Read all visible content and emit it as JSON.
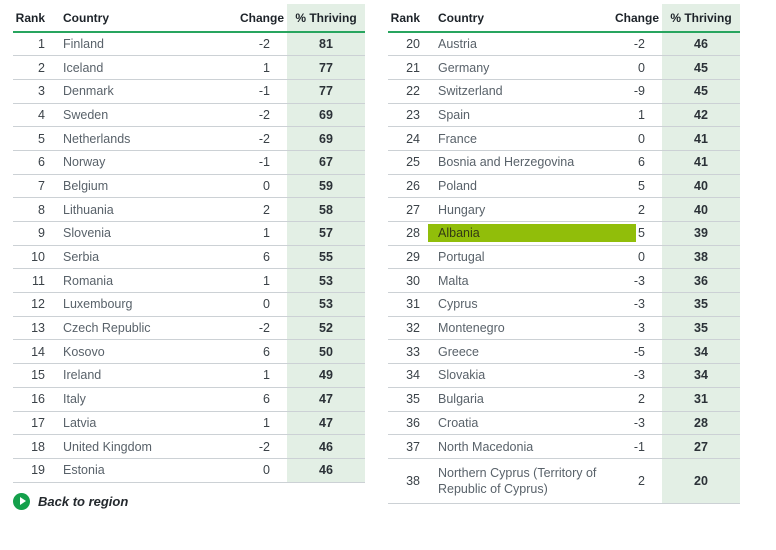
{
  "chart_data": {
    "type": "table",
    "columns": {
      "rank": "Rank",
      "country": "Country",
      "change": "Change",
      "thriving": "% Thriving"
    },
    "left_rows": [
      {
        "rank": 1,
        "country": "Finland",
        "change": -2,
        "thriving": 81
      },
      {
        "rank": 2,
        "country": "Iceland",
        "change": 1,
        "thriving": 77
      },
      {
        "rank": 3,
        "country": "Denmark",
        "change": -1,
        "thriving": 77
      },
      {
        "rank": 4,
        "country": "Sweden",
        "change": -2,
        "thriving": 69
      },
      {
        "rank": 5,
        "country": "Netherlands",
        "change": -2,
        "thriving": 69
      },
      {
        "rank": 6,
        "country": "Norway",
        "change": -1,
        "thriving": 67
      },
      {
        "rank": 7,
        "country": "Belgium",
        "change": 0,
        "thriving": 59
      },
      {
        "rank": 8,
        "country": "Lithuania",
        "change": 2,
        "thriving": 58
      },
      {
        "rank": 9,
        "country": "Slovenia",
        "change": 1,
        "thriving": 57
      },
      {
        "rank": 10,
        "country": "Serbia",
        "change": 6,
        "thriving": 55
      },
      {
        "rank": 11,
        "country": "Romania",
        "change": 1,
        "thriving": 53
      },
      {
        "rank": 12,
        "country": "Luxembourg",
        "change": 0,
        "thriving": 53
      },
      {
        "rank": 13,
        "country": "Czech Republic",
        "change": -2,
        "thriving": 52
      },
      {
        "rank": 14,
        "country": "Kosovo",
        "change": 6,
        "thriving": 50
      },
      {
        "rank": 15,
        "country": "Ireland",
        "change": 1,
        "thriving": 49
      },
      {
        "rank": 16,
        "country": "Italy",
        "change": 6,
        "thriving": 47
      },
      {
        "rank": 17,
        "country": "Latvia",
        "change": 1,
        "thriving": 47
      },
      {
        "rank": 18,
        "country": "United Kingdom",
        "change": -2,
        "thriving": 46
      },
      {
        "rank": 19,
        "country": "Estonia",
        "change": 0,
        "thriving": 46
      }
    ],
    "right_rows": [
      {
        "rank": 20,
        "country": "Austria",
        "change": -2,
        "thriving": 46
      },
      {
        "rank": 21,
        "country": "Germany",
        "change": 0,
        "thriving": 45
      },
      {
        "rank": 22,
        "country": "Switzerland",
        "change": -9,
        "thriving": 45
      },
      {
        "rank": 23,
        "country": "Spain",
        "change": 1,
        "thriving": 42
      },
      {
        "rank": 24,
        "country": "France",
        "change": 0,
        "thriving": 41
      },
      {
        "rank": 25,
        "country": "Bosnia and Herzegovina",
        "change": 6,
        "thriving": 41
      },
      {
        "rank": 26,
        "country": "Poland",
        "change": 5,
        "thriving": 40
      },
      {
        "rank": 27,
        "country": "Hungary",
        "change": 2,
        "thriving": 40
      },
      {
        "rank": 28,
        "country": "Albania",
        "change": 5,
        "thriving": 39,
        "highlight": true
      },
      {
        "rank": 29,
        "country": "Portugal",
        "change": 0,
        "thriving": 38
      },
      {
        "rank": 30,
        "country": "Malta",
        "change": -3,
        "thriving": 36
      },
      {
        "rank": 31,
        "country": "Cyprus",
        "change": -3,
        "thriving": 35
      },
      {
        "rank": 32,
        "country": "Montenegro",
        "change": 3,
        "thriving": 35
      },
      {
        "rank": 33,
        "country": "Greece",
        "change": -5,
        "thriving": 34
      },
      {
        "rank": 34,
        "country": "Slovakia",
        "change": -3,
        "thriving": 34
      },
      {
        "rank": 35,
        "country": "Bulgaria",
        "change": 2,
        "thriving": 31
      },
      {
        "rank": 36,
        "country": "Croatia",
        "change": -3,
        "thriving": 28
      },
      {
        "rank": 37,
        "country": "North Macedonia",
        "change": -1,
        "thriving": 27
      },
      {
        "rank": 38,
        "country": "Northern Cyprus (Territory of Republic of Cyprus)",
        "change": 2,
        "thriving": 20,
        "tall": true
      }
    ]
  },
  "footer": {
    "back_label": "Back to region"
  },
  "colors": {
    "header_line": "#28a55f",
    "thriving_bg": "#e3efe5",
    "highlight": "#91be0a",
    "button_green": "#14a04b"
  }
}
